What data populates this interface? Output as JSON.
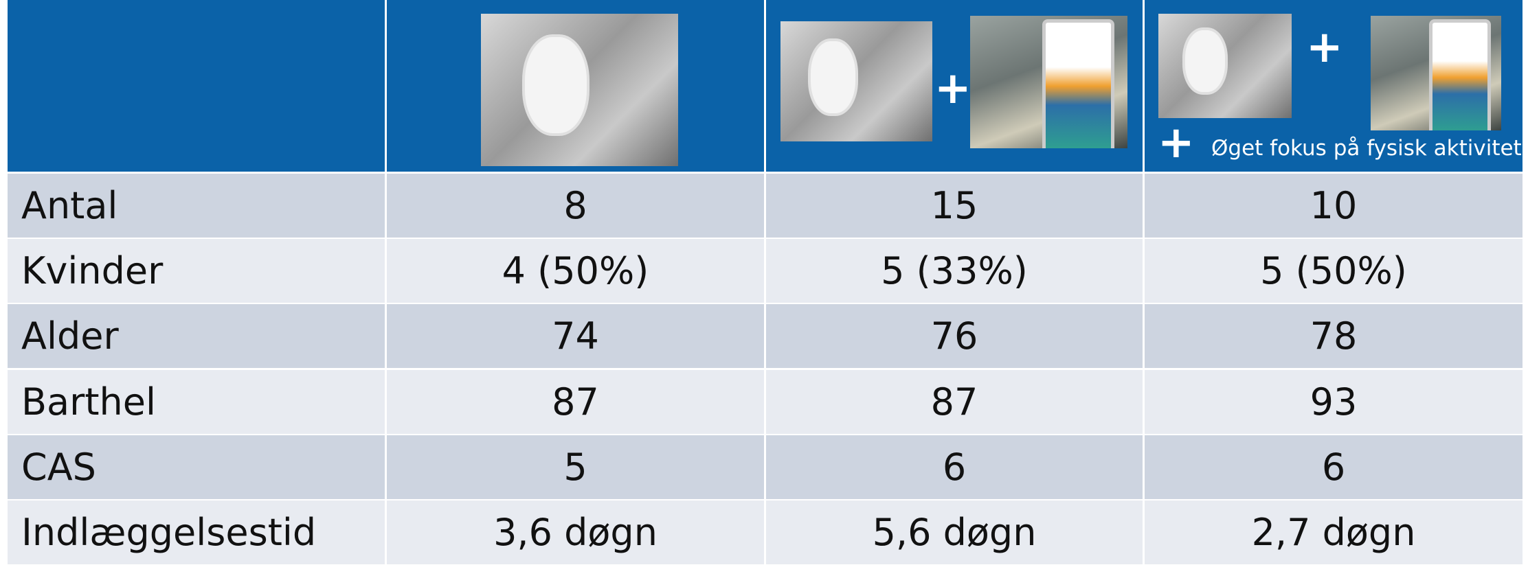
{
  "header": {
    "plus_1": "+",
    "plus_2": "+",
    "plus_3": "+",
    "caption": "Øget fokus på fysisk aktivitet"
  },
  "table": {
    "rows": [
      [
        "Antal",
        "8",
        "15",
        "10"
      ],
      [
        "Kvinder",
        "4 (50%)",
        "5 (33%)",
        "5 (50%)"
      ],
      [
        "Alder",
        "74",
        "76",
        "78"
      ],
      [
        "Barthel",
        "87",
        "87",
        "93"
      ],
      [
        "CAS",
        "5",
        "6",
        "6"
      ],
      [
        "Indlæggelsestid",
        "3,6 døgn",
        "5,6 døgn",
        "2,7 døgn"
      ]
    ]
  }
}
